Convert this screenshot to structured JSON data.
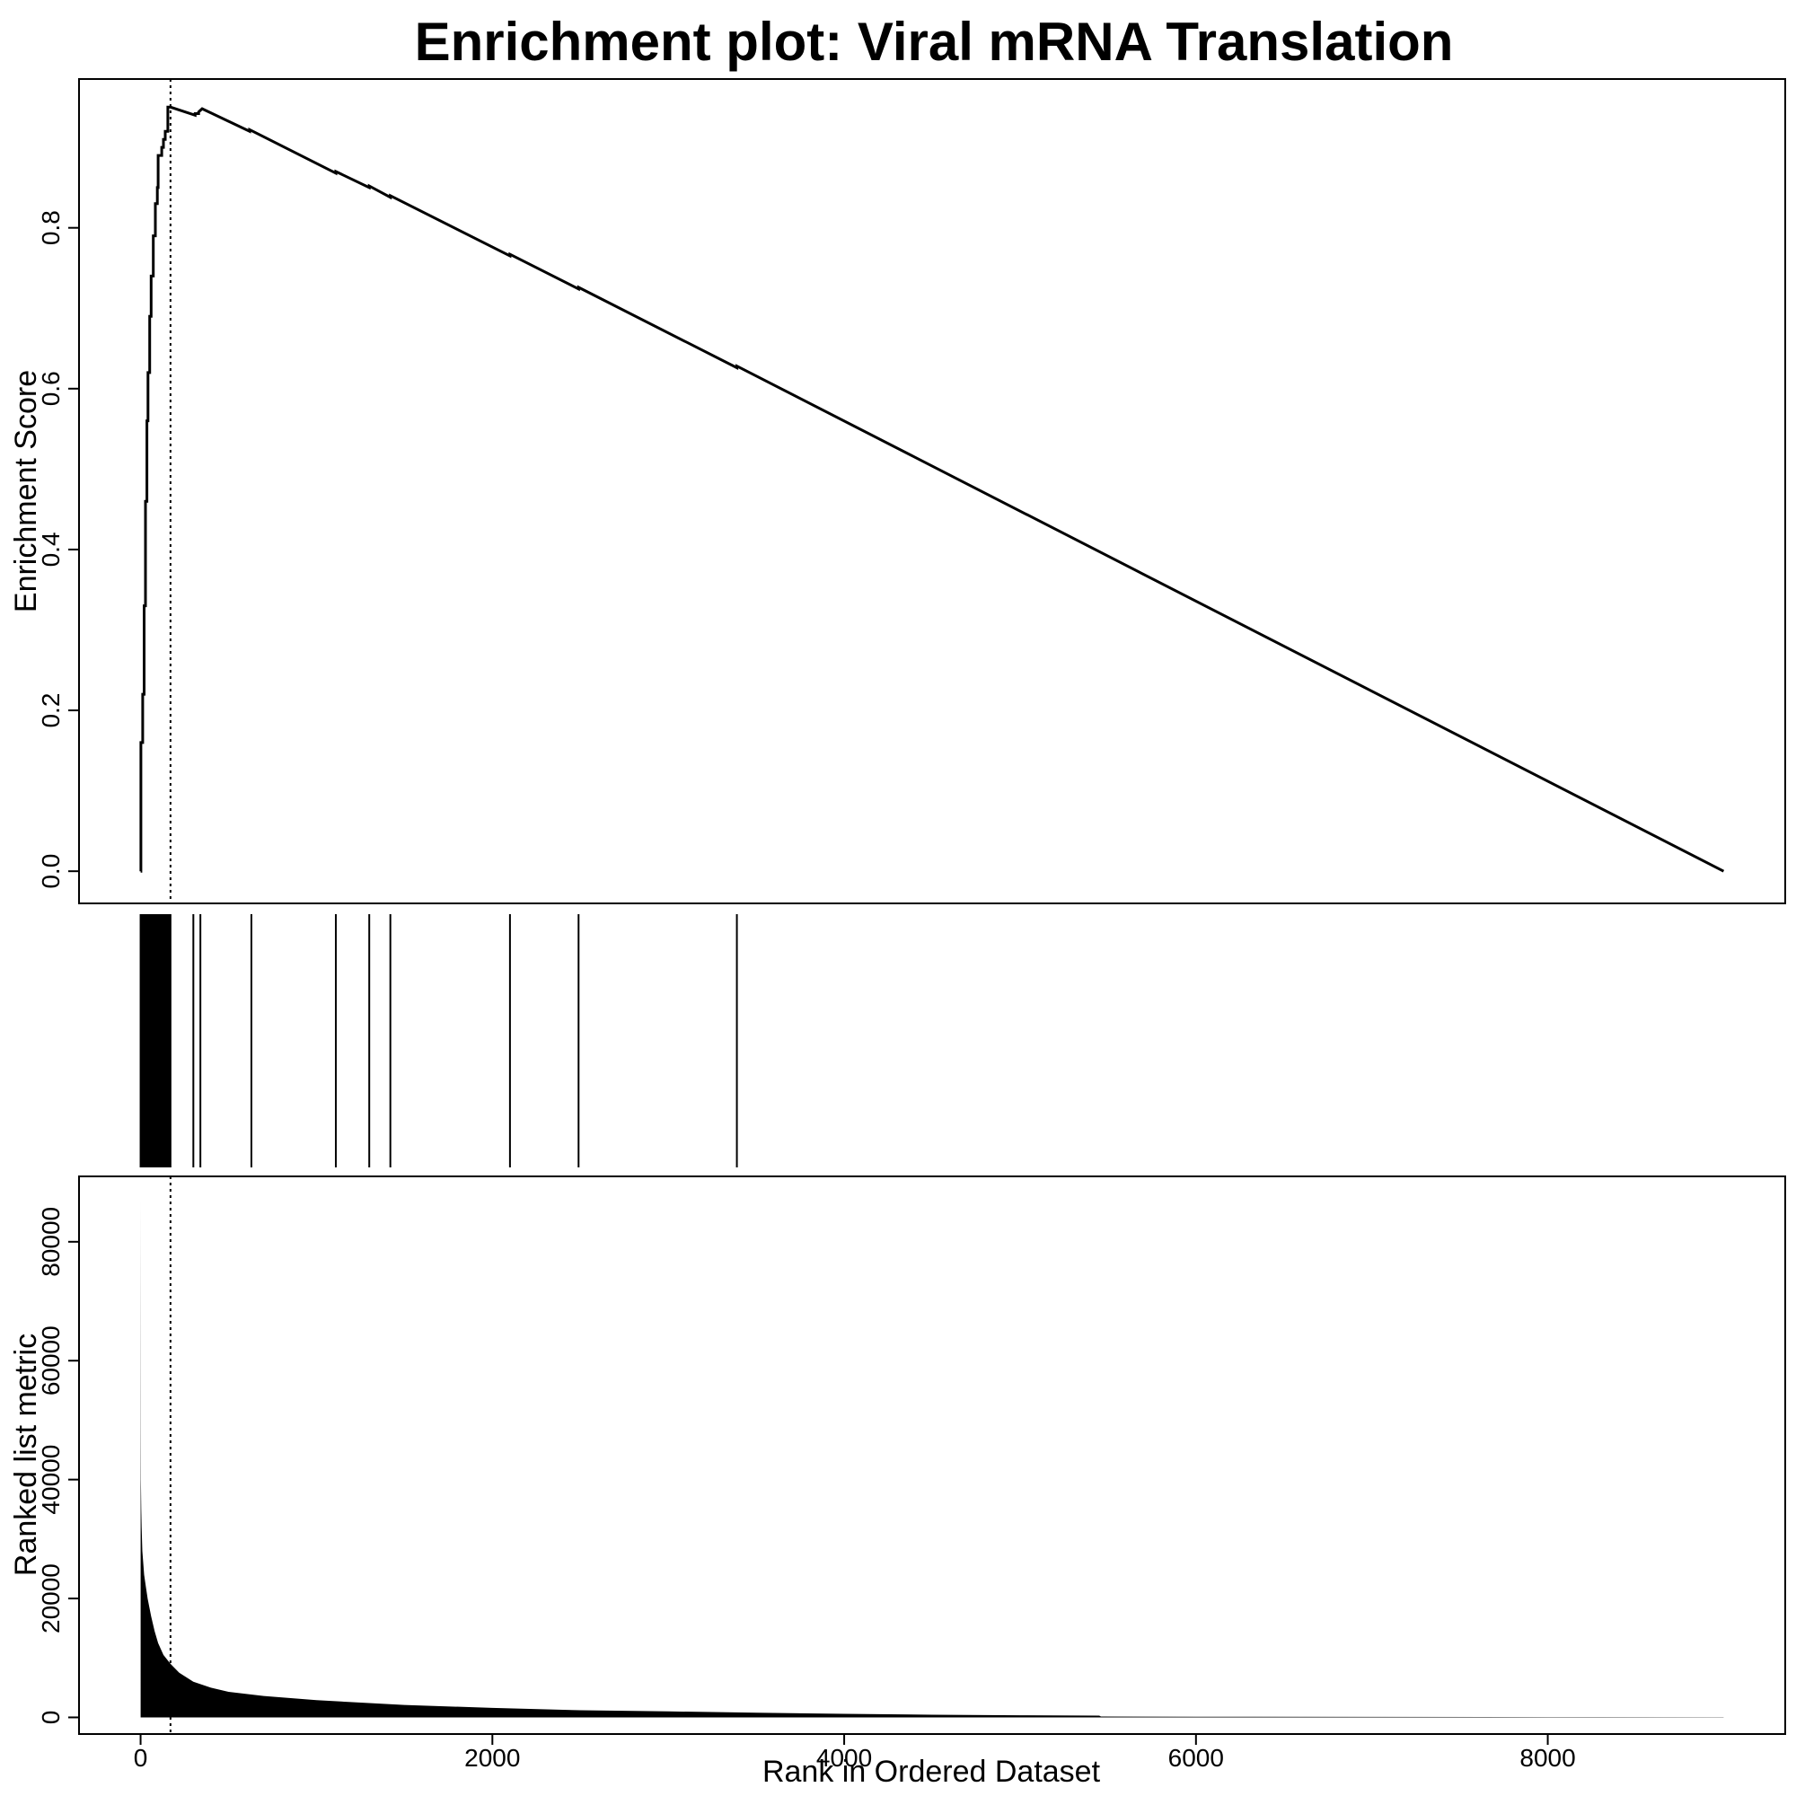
{
  "chart_data": {
    "type": "line",
    "title": "Enrichment plot: Viral mRNA Translation",
    "xlabel": "Rank in Ordered Dataset",
    "xlim": [
      -350,
      9350
    ],
    "x_ticks": [
      0,
      2000,
      4000,
      6000,
      8000
    ],
    "peak_rank": 170,
    "panels": {
      "enrichment": {
        "ylabel": "Enrichment Score",
        "ylim": [
          -0.04,
          0.985
        ],
        "y_ticks": [
          0.0,
          0.2,
          0.4,
          0.6,
          0.8
        ],
        "series": [
          {
            "x": [
              0,
              2,
              2,
              12,
              12,
              20,
              20,
              28,
              28,
              36,
              36,
              42,
              42,
              52,
              52,
              60,
              60,
              72,
              72,
              84,
              84,
              95,
              95,
              100,
              100,
              120,
              120,
              130,
              130,
              140,
              140,
              155,
              155,
              170,
              310,
              310,
              330,
              330,
              350,
              620,
              620,
              1110,
              1110,
              1300,
              1300,
              1420,
              1420,
              2100,
              2100,
              2490,
              2490,
              3390,
              3390,
              9000
            ],
            "y": [
              0.0,
              0.0,
              0.16,
              0.16,
              0.22,
              0.22,
              0.33,
              0.33,
              0.46,
              0.46,
              0.56,
              0.56,
              0.62,
              0.62,
              0.69,
              0.69,
              0.74,
              0.74,
              0.79,
              0.79,
              0.83,
              0.83,
              0.85,
              0.85,
              0.89,
              0.89,
              0.9,
              0.9,
              0.91,
              0.91,
              0.92,
              0.92,
              0.95,
              0.95,
              0.94,
              0.942,
              0.942,
              0.944,
              0.948,
              0.92,
              0.922,
              0.868,
              0.87,
              0.85,
              0.852,
              0.838,
              0.84,
              0.765,
              0.767,
              0.724,
              0.726,
              0.626,
              0.628,
              0.0
            ]
          }
        ]
      },
      "hits": {
        "hit_ranks": [
          0,
          6,
          12,
          18,
          24,
          30,
          36,
          42,
          48,
          54,
          60,
          66,
          72,
          78,
          84,
          90,
          95,
          100,
          105,
          110,
          118,
          125,
          130,
          135,
          140,
          148,
          155,
          160,
          165,
          170,
          300,
          340,
          630,
          1110,
          1300,
          1420,
          2100,
          2490,
          3390
        ]
      },
      "ranked_metric": {
        "ylabel": "Ranked list metric",
        "ylim": [
          -2800,
          91000
        ],
        "y_ticks": [
          0,
          20000,
          40000,
          60000,
          80000
        ],
        "series": [
          {
            "x": [
              0,
              1,
              2,
              4,
              6,
              10,
              15,
              20,
              30,
              40,
              60,
              80,
              100,
              130,
              170,
              220,
              300,
              400,
              500,
              700,
              1000,
              1500,
              2000,
              2500,
              3000,
              3500,
              4000,
              4500,
              5000,
              5450,
              5460,
              6000,
              7000,
              8000,
              9000
            ],
            "y": [
              87000,
              48000,
              40000,
              35000,
              32000,
              28000,
              26000,
              24000,
              22000,
              20000,
              17000,
              14500,
              12500,
              10500,
              9000,
              7500,
              6000,
              5000,
              4300,
              3600,
              2900,
              2100,
              1600,
              1200,
              1000,
              800,
              600,
              450,
              350,
              300,
              150,
              120,
              90,
              60,
              30
            ]
          }
        ]
      }
    }
  }
}
